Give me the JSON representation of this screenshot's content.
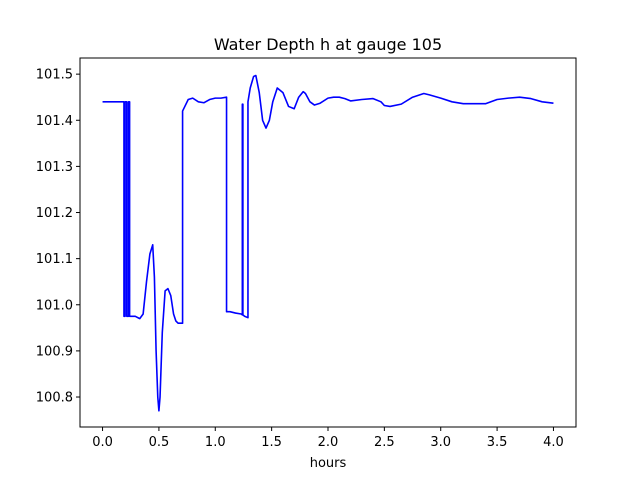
{
  "chart_data": {
    "type": "line",
    "title": "Water Depth h at gauge 105",
    "xlabel": "hours",
    "ylabel": "",
    "xlim": [
      -0.2,
      4.2
    ],
    "ylim": [
      100.735,
      101.535
    ],
    "x_ticks": [
      0.0,
      0.5,
      1.0,
      1.5,
      2.0,
      2.5,
      3.0,
      3.5,
      4.0
    ],
    "x_tick_labels": [
      "0.0",
      "0.5",
      "1.0",
      "1.5",
      "2.0",
      "2.5",
      "3.0",
      "3.5",
      "4.0"
    ],
    "y_ticks": [
      100.8,
      100.9,
      101.0,
      101.1,
      101.2,
      101.3,
      101.4,
      101.5
    ],
    "y_tick_labels": [
      "100.8",
      "100.9",
      "101.0",
      "101.1",
      "101.2",
      "101.3",
      "101.4",
      "101.5"
    ],
    "grid": false,
    "series": [
      {
        "color": "#0000ff",
        "x": [
          0.0,
          0.19,
          0.19,
          0.2,
          0.2,
          0.215,
          0.215,
          0.23,
          0.23,
          0.24,
          0.24,
          0.29,
          0.33,
          0.36,
          0.39,
          0.42,
          0.445,
          0.46,
          0.475,
          0.49,
          0.5,
          0.51,
          0.53,
          0.555,
          0.58,
          0.605,
          0.63,
          0.65,
          0.67,
          0.69,
          0.71,
          0.71,
          0.73,
          0.76,
          0.8,
          0.85,
          0.9,
          0.95,
          1.0,
          1.05,
          1.1,
          1.1,
          1.13,
          1.18,
          1.23,
          1.24,
          1.24,
          1.245,
          1.245,
          1.26,
          1.29,
          1.29,
          1.31,
          1.34,
          1.36,
          1.39,
          1.42,
          1.45,
          1.48,
          1.51,
          1.55,
          1.6,
          1.65,
          1.7,
          1.74,
          1.78,
          1.8,
          1.84,
          1.88,
          1.93,
          2.0,
          2.05,
          2.1,
          2.15,
          2.2,
          2.3,
          2.4,
          2.47,
          2.5,
          2.55,
          2.65,
          2.75,
          2.85,
          2.9,
          3.0,
          3.1,
          3.2,
          3.3,
          3.4,
          3.5,
          3.6,
          3.7,
          3.8,
          3.9,
          4.0
        ],
        "values": [
          101.44,
          101.44,
          100.975,
          100.975,
          101.44,
          101.44,
          100.975,
          100.975,
          101.44,
          101.44,
          100.975,
          100.975,
          100.97,
          100.98,
          101.05,
          101.11,
          101.13,
          101.06,
          100.9,
          100.8,
          100.77,
          100.8,
          100.94,
          101.03,
          101.035,
          101.02,
          100.98,
          100.965,
          100.96,
          100.96,
          100.96,
          101.42,
          101.43,
          101.445,
          101.448,
          101.44,
          101.438,
          101.445,
          101.448,
          101.448,
          101.45,
          100.985,
          100.985,
          100.982,
          100.98,
          100.978,
          101.435,
          101.435,
          100.978,
          100.975,
          100.972,
          101.44,
          101.47,
          101.495,
          101.497,
          101.46,
          101.4,
          101.383,
          101.4,
          101.44,
          101.47,
          101.46,
          101.43,
          101.425,
          101.45,
          101.462,
          101.458,
          101.44,
          101.433,
          101.437,
          101.448,
          101.45,
          101.45,
          101.447,
          101.442,
          101.445,
          101.447,
          101.44,
          101.432,
          101.43,
          101.435,
          101.45,
          101.458,
          101.455,
          101.448,
          101.44,
          101.436,
          101.436,
          101.436,
          101.445,
          101.448,
          101.45,
          101.447,
          101.44,
          101.437
        ]
      }
    ]
  }
}
